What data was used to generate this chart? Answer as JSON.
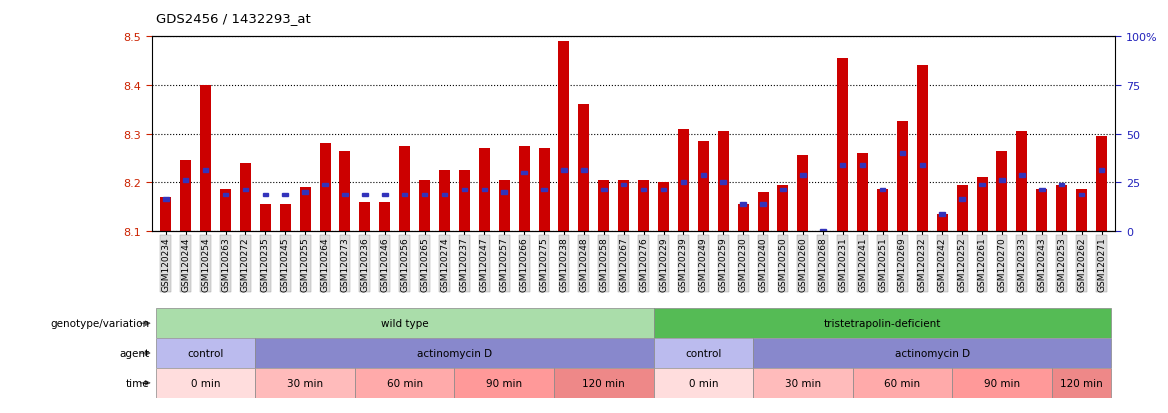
{
  "title": "GDS2456 / 1432293_at",
  "samples": [
    "GSM120234",
    "GSM120244",
    "GSM120254",
    "GSM120263",
    "GSM120272",
    "GSM120235",
    "GSM120245",
    "GSM120255",
    "GSM120264",
    "GSM120273",
    "GSM120236",
    "GSM120246",
    "GSM120256",
    "GSM120265",
    "GSM120274",
    "GSM120237",
    "GSM120247",
    "GSM120257",
    "GSM120266",
    "GSM120275",
    "GSM120238",
    "GSM120248",
    "GSM120258",
    "GSM120267",
    "GSM120276",
    "GSM120229",
    "GSM120239",
    "GSM120249",
    "GSM120259",
    "GSM120230",
    "GSM120240",
    "GSM120250",
    "GSM120260",
    "GSM120268",
    "GSM120231",
    "GSM120241",
    "GSM120251",
    "GSM120269",
    "GSM120232",
    "GSM120242",
    "GSM120252",
    "GSM120261",
    "GSM120270",
    "GSM120233",
    "GSM120243",
    "GSM120253",
    "GSM120262",
    "GSM120271"
  ],
  "bar_values": [
    8.17,
    8.245,
    8.4,
    8.185,
    8.24,
    8.155,
    8.155,
    8.19,
    8.28,
    8.265,
    8.16,
    8.16,
    8.275,
    8.205,
    8.225,
    8.225,
    8.27,
    8.205,
    8.275,
    8.27,
    8.49,
    8.36,
    8.205,
    8.205,
    8.205,
    8.2,
    8.31,
    8.285,
    8.305,
    8.155,
    8.18,
    8.195,
    8.255,
    8.1,
    8.455,
    8.26,
    8.185,
    8.325,
    8.44,
    8.135,
    8.195,
    8.21,
    8.265,
    8.305,
    8.185,
    8.195,
    8.185,
    8.295
  ],
  "blue_values": [
    8.165,
    8.205,
    8.225,
    8.175,
    8.185,
    8.175,
    8.175,
    8.18,
    8.195,
    8.175,
    8.175,
    8.175,
    8.175,
    8.175,
    8.175,
    8.185,
    8.185,
    8.18,
    8.22,
    8.185,
    8.225,
    8.225,
    8.185,
    8.195,
    8.185,
    8.185,
    8.2,
    8.215,
    8.2,
    8.155,
    8.155,
    8.185,
    8.215,
    8.1,
    8.235,
    8.235,
    8.185,
    8.26,
    8.235,
    8.135,
    8.165,
    8.195,
    8.205,
    8.215,
    8.185,
    8.195,
    8.175,
    8.225
  ],
  "ylim_left": [
    8.1,
    8.5
  ],
  "ylim_right": [
    0,
    100
  ],
  "yticks_left": [
    8.1,
    8.2,
    8.3,
    8.4,
    8.5
  ],
  "yticks_right": [
    0,
    25,
    50,
    75,
    100
  ],
  "ytick_labels_right": [
    "0",
    "25",
    "50",
    "75",
    "100%"
  ],
  "bar_color": "#CC0000",
  "blue_color": "#3333BB",
  "bar_bottom": 8.1,
  "genotype_groups": [
    {
      "label": "wild type",
      "start": 0,
      "end": 24,
      "color": "#AADDAA"
    },
    {
      "label": "tristetrapolin-deficient",
      "start": 25,
      "end": 47,
      "color": "#55BB55"
    }
  ],
  "agent_groups": [
    {
      "label": "control",
      "start": 0,
      "end": 4,
      "color": "#BBBBEE"
    },
    {
      "label": "actinomycin D",
      "start": 5,
      "end": 24,
      "color": "#8888CC"
    },
    {
      "label": "control",
      "start": 25,
      "end": 29,
      "color": "#BBBBEE"
    },
    {
      "label": "actinomycin D",
      "start": 30,
      "end": 47,
      "color": "#8888CC"
    }
  ],
  "time_groups": [
    {
      "label": "0 min",
      "start": 0,
      "end": 4,
      "color": "#FFDDDD"
    },
    {
      "label": "30 min",
      "start": 5,
      "end": 9,
      "color": "#FFBBBB"
    },
    {
      "label": "60 min",
      "start": 10,
      "end": 14,
      "color": "#FFAAAA"
    },
    {
      "label": "90 min",
      "start": 15,
      "end": 19,
      "color": "#FF9999"
    },
    {
      "label": "120 min",
      "start": 20,
      "end": 24,
      "color": "#EE8888"
    },
    {
      "label": "0 min",
      "start": 25,
      "end": 29,
      "color": "#FFDDDD"
    },
    {
      "label": "30 min",
      "start": 30,
      "end": 34,
      "color": "#FFBBBB"
    },
    {
      "label": "60 min",
      "start": 35,
      "end": 39,
      "color": "#FFAAAA"
    },
    {
      "label": "90 min",
      "start": 40,
      "end": 44,
      "color": "#FF9999"
    },
    {
      "label": "120 min",
      "start": 45,
      "end": 47,
      "color": "#EE8888"
    }
  ]
}
